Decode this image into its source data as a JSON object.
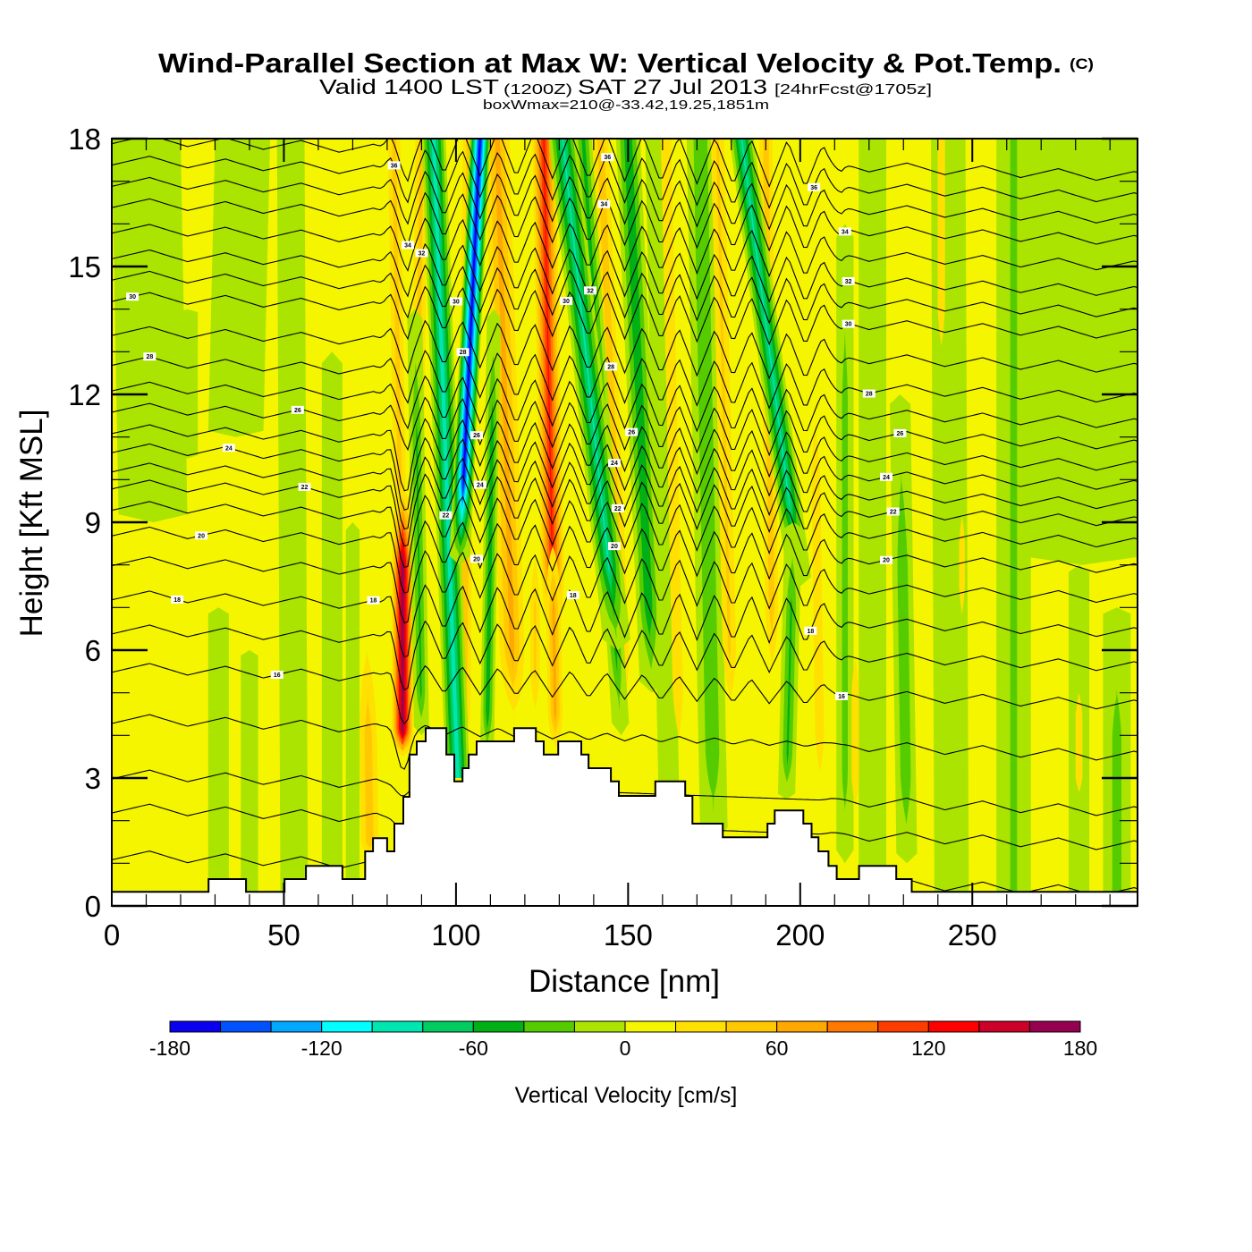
{
  "chart_data": {
    "type": "heatmap",
    "title": "Wind-Parallel Section at Max W: Vertical Velocity & Pot.Temp.",
    "title_mark": "(C)",
    "subtitle_parts": [
      "Valid 1400 LST",
      "(1200Z)",
      "SAT 27 Jul 2013",
      "[24hrFcst@1705z]"
    ],
    "subtitle2": "boxWmax=210@-33.42,19.25,1851m",
    "xlabel": "Distance [nm]",
    "ylabel": "Height [Kft MSL]",
    "xlim": [
      0,
      298
    ],
    "ylim": [
      0,
      18
    ],
    "xticks": [
      0,
      50,
      100,
      150,
      200,
      250
    ],
    "xticks_minor_step": 10,
    "yticks": [
      0,
      3,
      6,
      9,
      12,
      15,
      18
    ],
    "yticks_minor_step": 1,
    "grid": false,
    "colorbar": {
      "label": "Vertical Velocity [cm/s]",
      "placement": "bottom",
      "levels": [
        -180,
        -160,
        -140,
        -120,
        -100,
        -80,
        -60,
        -40,
        -20,
        0,
        20,
        40,
        60,
        80,
        100,
        120,
        140,
        160,
        180
      ],
      "colors": [
        "#0a00f0",
        "#0052ff",
        "#00a8ff",
        "#00ffff",
        "#00e6b0",
        "#00cc60",
        "#00b014",
        "#55cc00",
        "#aae400",
        "#f5f500",
        "#ffe000",
        "#ffc800",
        "#ffa800",
        "#ff7800",
        "#ff3c00",
        "#ff0000",
        "#cc0028",
        "#960050"
      ],
      "tick_labels": [
        -180,
        -120,
        -60,
        0,
        60,
        120,
        180
      ]
    },
    "velocity_background_value": 10,
    "velocity_bands": [
      {
        "xt": 10,
        "xb": 12,
        "zt": 18,
        "zb": 9,
        "w": 10,
        "v": -15,
        "tb": 3,
        "tt": 0
      },
      {
        "xt": 38,
        "xb": 36,
        "zt": 18,
        "zb": 11,
        "w": 8,
        "v": -15,
        "tb": 3,
        "tt": 0
      },
      {
        "xt": 22,
        "xb": 22,
        "zt": 14,
        "zb": 10.5,
        "w": 3,
        "v": -15,
        "tb": 1.5,
        "tt": 1
      },
      {
        "xt": 52,
        "xb": 53,
        "zt": 18,
        "zb": 0,
        "w": 4,
        "v": -15,
        "tb": 0,
        "tt": 0
      },
      {
        "xt": 31,
        "xb": 31,
        "zt": 7,
        "zb": 0,
        "w": 3,
        "v": -15,
        "tb": 0,
        "tt": 3
      },
      {
        "xt": 40,
        "xb": 40,
        "zt": 6,
        "zb": 0,
        "w": 2.5,
        "v": -15,
        "tb": 0,
        "tt": 3
      },
      {
        "xt": 64,
        "xb": 64,
        "zt": 13,
        "zb": 0,
        "w": 3,
        "v": -15,
        "tb": 0,
        "tt": 4
      },
      {
        "xt": 70,
        "xb": 70,
        "zt": 9,
        "zb": 0,
        "w": 2,
        "v": -15,
        "tb": 0,
        "tt": 4
      },
      {
        "xt": 280,
        "xb": 282,
        "zt": 18,
        "zb": 8,
        "w": 18,
        "v": -15,
        "tb": 3,
        "tt": 0
      },
      {
        "xt": 262,
        "xb": 262,
        "zt": 18,
        "zb": 0,
        "w": 5,
        "v": -25,
        "tb": 0,
        "tt": 0
      },
      {
        "xt": 292,
        "xb": 292,
        "zt": 7,
        "zb": 0,
        "w": 4,
        "v": -30,
        "tb": 0,
        "tt": 3
      },
      {
        "xt": 243,
        "xb": 244,
        "zt": 18,
        "zb": 0,
        "w": 5,
        "v": -15,
        "tb": 0,
        "tt": 0
      },
      {
        "xt": 221,
        "xb": 221,
        "zt": 18,
        "zb": 0,
        "w": 4,
        "v": -15,
        "tb": 0,
        "tt": 0
      },
      {
        "xt": 229,
        "xb": 231,
        "zt": 12,
        "zb": 1,
        "w": 3,
        "v": -40,
        "tb": 2,
        "tt": 4
      },
      {
        "xt": 213,
        "xb": 213,
        "zt": 16,
        "zb": 1,
        "w": 2.5,
        "v": -30,
        "tb": 2,
        "tt": 4
      },
      {
        "xt": 281,
        "xb": 281,
        "zt": 8,
        "zb": 0,
        "w": 3,
        "v": -15,
        "tb": 0,
        "tt": 3
      },
      {
        "xt": 158,
        "xb": 162,
        "zt": 18,
        "zb": 2,
        "w": 3,
        "v": -15,
        "tb": 1,
        "tt": 0
      },
      {
        "xt": 171,
        "xb": 175,
        "zt": 18,
        "zb": 1.5,
        "w": 4,
        "v": -40,
        "tb": 2,
        "tt": 0
      },
      {
        "xt": 74,
        "xb": 75,
        "zt": 7,
        "zb": 1,
        "w": 4,
        "v": 55,
        "tb": 0.5,
        "tt": 3
      },
      {
        "xt": 90,
        "xb": 88,
        "zt": 18,
        "zb": 5,
        "w": 3,
        "v": 50,
        "tb": 2,
        "tt": 0
      },
      {
        "xt": 82,
        "xb": 84,
        "zt": 18,
        "zb": 8,
        "w": 3,
        "v": 50,
        "tb": 2,
        "tt": 0
      },
      {
        "xt": 84.5,
        "xb": 84.5,
        "zt": 10,
        "zb": 3.5,
        "w": 3.5,
        "v": 175,
        "tb": 0.6,
        "tt": 2
      },
      {
        "xt": 104,
        "xb": 102,
        "zt": 18,
        "zb": 3.5,
        "w": 3,
        "v": 60,
        "tb": 1,
        "tt": 0
      },
      {
        "xt": 112,
        "xb": 117,
        "zt": 18,
        "zb": 4,
        "w": 5,
        "v": 70,
        "tb": 2,
        "tt": 0
      },
      {
        "xt": 123,
        "xb": 123,
        "zt": 9,
        "zb": 4,
        "w": 2.5,
        "v": 45,
        "tb": 1.5,
        "tt": 2
      },
      {
        "xt": 125.5,
        "xb": 128.5,
        "zt": 18,
        "zb": 6,
        "w": 4,
        "v": 125,
        "tb": 2,
        "tt": 0
      },
      {
        "xt": 128,
        "xb": 129,
        "zt": 9,
        "zb": 3.5,
        "w": 3,
        "v": 70,
        "tb": 1,
        "tt": 2
      },
      {
        "xt": 142,
        "xb": 149,
        "zt": 18,
        "zb": 4,
        "w": 3.5,
        "v": 55,
        "tb": 2,
        "tt": 0
      },
      {
        "xt": 161,
        "xb": 165,
        "zt": 18,
        "zb": 3,
        "w": 3,
        "v": 40,
        "tb": 2,
        "tt": 0
      },
      {
        "xt": 176,
        "xb": 180,
        "zt": 18,
        "zb": 4,
        "w": 3.5,
        "v": 45,
        "tb": 2,
        "tt": 0
      },
      {
        "xt": 190,
        "xb": 192,
        "zt": 18,
        "zb": 5,
        "w": 3,
        "v": 55,
        "tb": 2,
        "tt": 0
      },
      {
        "xt": 204,
        "xb": 206,
        "zt": 13,
        "zb": 2,
        "w": 3,
        "v": 35,
        "tb": 2,
        "tt": 3
      },
      {
        "xt": 216,
        "xb": 216,
        "zt": 7,
        "zb": 1.5,
        "w": 2.5,
        "v": 35,
        "tb": 1.5,
        "tt": 2
      },
      {
        "xt": 241,
        "xb": 241,
        "zt": 18,
        "zb": 12,
        "w": 2.5,
        "v": 35,
        "tb": 2,
        "tt": 0
      },
      {
        "xt": 247,
        "xb": 247,
        "zt": 10,
        "zb": 6,
        "w": 2,
        "v": 35,
        "tb": 1.5,
        "tt": 1.5
      },
      {
        "xt": 281,
        "xb": 281,
        "zt": 6,
        "zb": 2,
        "w": 3,
        "v": 30,
        "tb": 1,
        "tt": 1.5
      },
      {
        "xt": 88,
        "xb": 90,
        "zt": 14,
        "zb": 4,
        "w": 2.2,
        "v": -45,
        "tb": 1,
        "tt": 3
      },
      {
        "xt": 93.5,
        "xb": 100.5,
        "zt": 18,
        "zb": 3,
        "w": 3.5,
        "v": -95,
        "tb": 0,
        "tt": 0
      },
      {
        "xt": 107,
        "xb": 101,
        "zt": 18,
        "zb": 8,
        "w": 3,
        "v": -175,
        "tb": 2,
        "tt": 0
      },
      {
        "xt": 111,
        "xb": 109,
        "zt": 14,
        "zb": 3.5,
        "w": 2,
        "v": -55,
        "tb": 1,
        "tt": 3
      },
      {
        "xt": 137,
        "xb": 148,
        "zt": 18,
        "zb": 4,
        "w": 2.5,
        "v": -50,
        "tb": 2,
        "tt": 0
      },
      {
        "xt": 131,
        "xb": 147,
        "zt": 18,
        "zb": 6,
        "w": 4,
        "v": -85,
        "tb": 2,
        "tt": 0
      },
      {
        "xt": 150,
        "xb": 157,
        "zt": 18,
        "zb": 5,
        "w": 3.5,
        "v": -60,
        "tb": 2,
        "tt": 0
      },
      {
        "xt": 183,
        "xb": 200,
        "zt": 18,
        "zb": 7.5,
        "w": 3.5,
        "v": -85,
        "tb": 2,
        "tt": 0
      },
      {
        "xt": 198,
        "xb": 196,
        "zt": 9,
        "zb": 2.5,
        "w": 2.5,
        "v": -45,
        "tb": 1,
        "tt": 2
      }
    ],
    "terrain_steps": [
      [
        0,
        0.33
      ],
      [
        28.1,
        0.63
      ],
      [
        39.0,
        0.33
      ],
      [
        50.2,
        0.63
      ],
      [
        56.4,
        0.94
      ],
      [
        67.0,
        0.63
      ],
      [
        73.6,
        1.28
      ],
      [
        75.9,
        1.59
      ],
      [
        80.0,
        1.28
      ],
      [
        82.1,
        1.93
      ],
      [
        84.7,
        2.56
      ],
      [
        86.5,
        3.55
      ],
      [
        88.6,
        3.86
      ],
      [
        91.2,
        4.17
      ],
      [
        97.2,
        3.55
      ],
      [
        99.5,
        2.92
      ],
      [
        101.9,
        3.23
      ],
      [
        103.7,
        3.55
      ],
      [
        106.0,
        3.86
      ],
      [
        116.9,
        4.17
      ],
      [
        123.2,
        3.86
      ],
      [
        125.5,
        3.55
      ],
      [
        129.7,
        3.86
      ],
      [
        136.4,
        3.55
      ],
      [
        138.5,
        3.23
      ],
      [
        145.0,
        2.92
      ],
      [
        147.3,
        2.58
      ],
      [
        157.9,
        2.92
      ],
      [
        166.6,
        2.58
      ],
      [
        168.7,
        1.93
      ],
      [
        177.5,
        1.61
      ],
      [
        190.5,
        1.93
      ],
      [
        192.6,
        2.24
      ],
      [
        200.9,
        1.93
      ],
      [
        203.3,
        1.61
      ],
      [
        205.3,
        1.28
      ],
      [
        208.2,
        0.94
      ],
      [
        210.6,
        0.63
      ],
      [
        217.1,
        0.94
      ],
      [
        227.9,
        0.63
      ],
      [
        232.4,
        0.33
      ]
    ],
    "theta_contours": {
      "units": "C",
      "interval": 1,
      "levels": [
        12,
        13,
        14,
        15,
        16,
        17,
        18,
        19,
        20,
        21,
        22,
        23,
        24,
        25,
        26,
        27,
        28,
        29,
        30,
        31,
        32,
        33,
        34,
        35,
        36,
        37
      ],
      "heights_kft_at_0nm": [
        1.2,
        2.3,
        3.1,
        4.4,
        5.6,
        6.5,
        7.3,
        8.1,
        8.8,
        9.4,
        9.9,
        10.3,
        10.75,
        11.2,
        11.7,
        12.2,
        12.8,
        13.5,
        14.3,
        14.8,
        15.3,
        15.9,
        16.5,
        17.0,
        17.5,
        18.0
      ],
      "labels": [
        {
          "text": "30",
          "level": 30,
          "x": 6
        },
        {
          "text": "28",
          "level": 28,
          "x": 11
        },
        {
          "text": "26",
          "level": 26,
          "x": 54
        },
        {
          "text": "24",
          "level": 24,
          "x": 34
        },
        {
          "text": "22",
          "level": 22,
          "x": 56
        },
        {
          "text": "20",
          "level": 20,
          "x": 26
        },
        {
          "text": "18",
          "level": 18,
          "x": 19
        },
        {
          "text": "16",
          "level": 16,
          "x": 48
        },
        {
          "text": "18",
          "level": 18,
          "x": 76
        },
        {
          "text": "36",
          "level": 36,
          "x": 82
        },
        {
          "text": "34",
          "level": 34,
          "x": 86
        },
        {
          "text": "32",
          "level": 32,
          "x": 90
        },
        {
          "text": "22",
          "level": 22,
          "x": 97
        },
        {
          "text": "30",
          "level": 30,
          "x": 100
        },
        {
          "text": "28",
          "level": 28,
          "x": 102
        },
        {
          "text": "26",
          "level": 26,
          "x": 106
        },
        {
          "text": "24",
          "level": 24,
          "x": 107
        },
        {
          "text": "20",
          "level": 20,
          "x": 106
        },
        {
          "text": "36",
          "level": 36,
          "x": 144
        },
        {
          "text": "34",
          "level": 34,
          "x": 143
        },
        {
          "text": "32",
          "level": 32,
          "x": 139
        },
        {
          "text": "30",
          "level": 30,
          "x": 132
        },
        {
          "text": "28",
          "level": 28,
          "x": 145
        },
        {
          "text": "26",
          "level": 26,
          "x": 151
        },
        {
          "text": "24",
          "level": 24,
          "x": 146
        },
        {
          "text": "22",
          "level": 22,
          "x": 147
        },
        {
          "text": "20",
          "level": 20,
          "x": 146
        },
        {
          "text": "18",
          "level": 18,
          "x": 134
        },
        {
          "text": "36",
          "level": 36,
          "x": 204
        },
        {
          "text": "34",
          "level": 34,
          "x": 213
        },
        {
          "text": "32",
          "level": 32,
          "x": 214
        },
        {
          "text": "30",
          "level": 30,
          "x": 214
        },
        {
          "text": "28",
          "level": 28,
          "x": 220
        },
        {
          "text": "26",
          "level": 26,
          "x": 229
        },
        {
          "text": "24",
          "level": 24,
          "x": 225
        },
        {
          "text": "22",
          "level": 22,
          "x": 227
        },
        {
          "text": "20",
          "level": 20,
          "x": 225
        },
        {
          "text": "18",
          "level": 18,
          "x": 203
        },
        {
          "text": "16",
          "level": 16,
          "x": 212
        }
      ]
    }
  }
}
